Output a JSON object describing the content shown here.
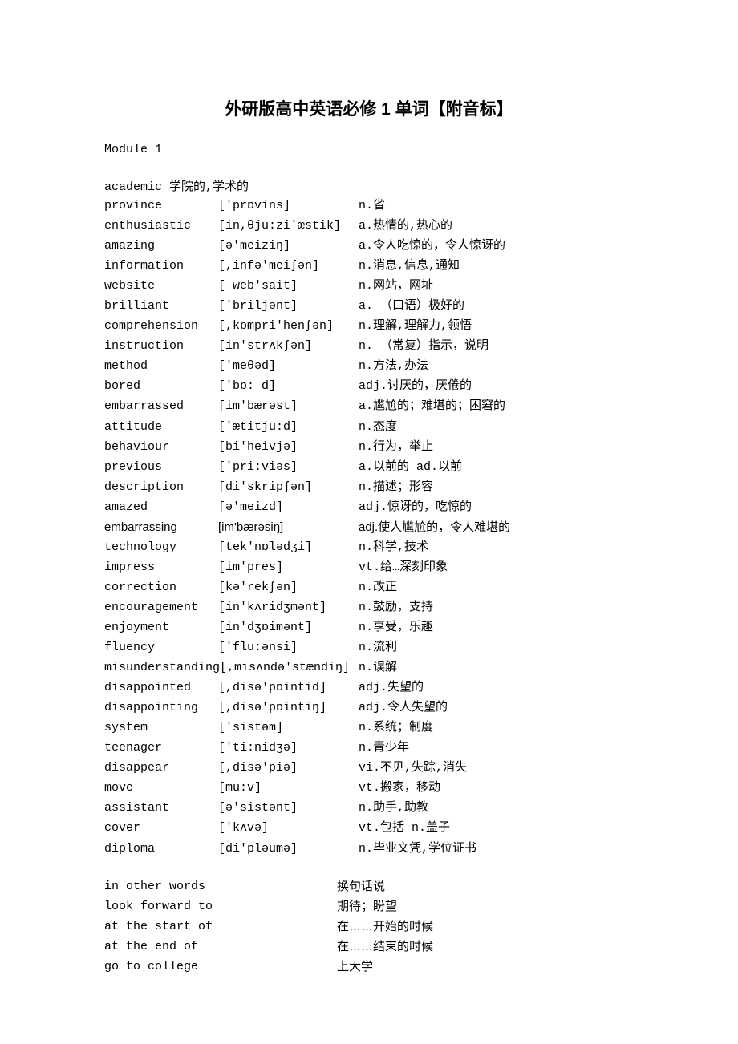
{
  "title": "外研版高中英语必修 1 单词【附音标】",
  "module_label": "Module 1",
  "intro": "academic 学院的,学术的",
  "rows": [
    {
      "w": "province",
      "p": "['prɒvins]",
      "d": "n.省"
    },
    {
      "w": "enthusiastic",
      "p": "[in,θju:zi'æstik]",
      "d": "a.热情的,热心的"
    },
    {
      "w": "amazing",
      "p": "[ə'meiziŋ]",
      "d": "a.令人吃惊的，令人惊讶的"
    },
    {
      "w": "information",
      "p": "[,infə'meiʃən]",
      "d": "n.消息,信息,通知"
    },
    {
      "w": "website",
      "p": "[ web'sait]",
      "d": "n.网站，网址"
    },
    {
      "w": "brilliant",
      "p": "['briljənt]",
      "d": "a. （口语）极好的"
    },
    {
      "w": "comprehension",
      "p": "[,kɒmpri'henʃən]",
      "d": "n.理解,理解力,领悟"
    },
    {
      "w": "instruction",
      "p": "[in'strʌkʃən]",
      "d": "n. （常复）指示，说明"
    },
    {
      "w": "method",
      "p": "['meθəd]",
      "d": "n.方法,办法"
    },
    {
      "w": "bored",
      "p": "['bɒ: d]",
      "d": "adj.讨厌的，厌倦的"
    },
    {
      "w": "embarrassed",
      "p": "[im'bærəst]",
      "d": "a.尴尬的；难堪的；困窘的"
    },
    {
      "w": "attitude",
      "p": "['ætitju:d]",
      "d": "n.态度"
    },
    {
      "w": "behaviour",
      "p": "[bi'heivjə]",
      "d": "n.行为，举止"
    },
    {
      "w": "previous",
      "p": "['pri:viəs]",
      "d": "a.以前的 ad.以前"
    },
    {
      "w": "description",
      "p": "[di'skripʃən]",
      "d": "n.描述；形容"
    },
    {
      "w": "amazed",
      "p": "[ə'meizd]",
      "d": "adj.惊讶的，吃惊的"
    },
    {
      "w": "embarrassing",
      "p": "[im'bærəsiŋ]",
      "d": "adj.使人尴尬的，令人难堪的",
      "sans": true
    },
    {
      "w": "technology",
      "p": "[tek'nɒlədʒi]",
      "d": "n.科学,技术"
    },
    {
      "w": "impress",
      "p": "[im'pres]",
      "d": "vt.给…深刻印象"
    },
    {
      "w": "correction",
      "p": "[kə'rekʃən]",
      "d": "n.改正"
    },
    {
      "w": "encouragement",
      "p": "[in'kʌridʒmənt]",
      "d": "n.鼓励，支持"
    },
    {
      "w": "enjoyment",
      "p": "[in'dʒɒimənt]",
      "d": "n.享受，乐趣"
    },
    {
      "w": "fluency",
      "p": "['flu:ənsi]",
      "d": "n.流利"
    },
    {
      "w": "misunderstanding",
      "p": "[,misʌndə'stændiŋ]",
      "d": "n.误解",
      "tight": true
    },
    {
      "w": "disappointed",
      "p": "[,disə'pɒintid]",
      "d": "adj.失望的"
    },
    {
      "w": "disappointing",
      "p": "[,disə'pɒintiŋ]",
      "d": "adj.令人失望的"
    },
    {
      "w": "system",
      "p": "['sistəm]",
      "d": "n.系统；制度"
    },
    {
      "w": "teenager",
      "p": "['ti:nidʒə]",
      "d": "n.青少年"
    },
    {
      "w": "disappear",
      "p": "[,disə'piə]",
      "d": "vi.不见,失踪,消失"
    },
    {
      "w": "move",
      "p": "[mu:v]",
      "d": "vt.搬家，移动"
    },
    {
      "w": "assistant",
      "p": "[ə'sistənt]",
      "d": "n.助手,助教"
    },
    {
      "w": "cover",
      "p": "['kʌvə]",
      "d": "vt.包括 n.盖子"
    },
    {
      "w": "diploma",
      "p": "[di'pləumə]",
      "d": "n.毕业文凭,学位证书"
    }
  ],
  "phrases": [
    {
      "e": "in other words",
      "c": "换句话说"
    },
    {
      "e": "look forward to",
      "c": "期待；盼望"
    },
    {
      "e": "at the start of",
      "c": "在……开始的时候"
    },
    {
      "e": "at the end of",
      "c": "在……结束的时候"
    },
    {
      "e": "go to college",
      "c": "上大学"
    }
  ]
}
